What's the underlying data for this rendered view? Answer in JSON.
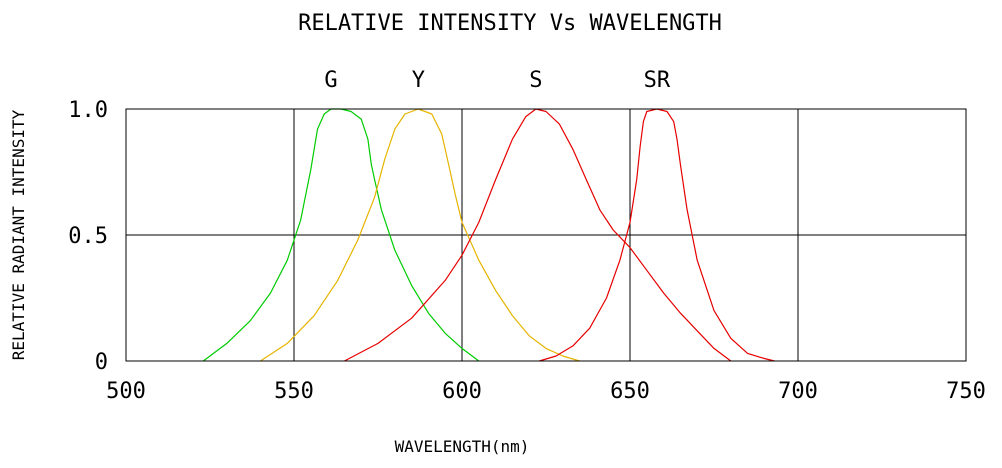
{
  "chart_data": {
    "type": "line",
    "title": "RELATIVE INTENSITY Vs WAVELENGTH",
    "xlabel": "WAVELENGTH(nm)",
    "ylabel": "RELATIVE RADIANT INTENSITY",
    "xlim": [
      500,
      750
    ],
    "ylim": [
      0,
      1.0
    ],
    "x_ticks": [
      500,
      550,
      600,
      650,
      700,
      750
    ],
    "x_tick_labels": [
      "500",
      "550",
      "600",
      "650",
      "700",
      "750"
    ],
    "y_ticks": [
      0,
      0.5,
      1.0
    ],
    "y_tick_labels": [
      "0",
      "0.5",
      "1.0"
    ],
    "grid": true,
    "series": [
      {
        "name": "G",
        "color": "#00cc00",
        "x": [
          523,
          530,
          537,
          543,
          548,
          552,
          555,
          557,
          559,
          561,
          564,
          567,
          570,
          572,
          573,
          574,
          576,
          580,
          585,
          590,
          595,
          600,
          605
        ],
        "y": [
          0.0,
          0.07,
          0.16,
          0.27,
          0.4,
          0.56,
          0.76,
          0.92,
          0.98,
          1.0,
          1.0,
          0.99,
          0.96,
          0.88,
          0.78,
          0.72,
          0.6,
          0.44,
          0.3,
          0.19,
          0.11,
          0.05,
          0.0
        ]
      },
      {
        "name": "Y",
        "color": "#e6b400",
        "x": [
          540,
          548,
          556,
          563,
          569,
          574,
          577,
          580,
          583,
          587,
          591,
          594,
          596,
          598,
          600,
          605,
          610,
          615,
          620,
          625,
          630,
          635
        ],
        "y": [
          0.0,
          0.07,
          0.18,
          0.32,
          0.48,
          0.65,
          0.8,
          0.92,
          0.98,
          1.0,
          0.98,
          0.9,
          0.78,
          0.66,
          0.55,
          0.4,
          0.28,
          0.18,
          0.1,
          0.05,
          0.02,
          0.0
        ]
      },
      {
        "name": "S",
        "color": "#e60000",
        "x": [
          565,
          575,
          585,
          595,
          600,
          605,
          610,
          615,
          619,
          622,
          625,
          629,
          633,
          637,
          641,
          645,
          650,
          655,
          660,
          665,
          670,
          675,
          680
        ],
        "y": [
          0.0,
          0.07,
          0.17,
          0.32,
          0.42,
          0.55,
          0.72,
          0.88,
          0.97,
          1.0,
          0.99,
          0.94,
          0.84,
          0.72,
          0.6,
          0.52,
          0.45,
          0.36,
          0.27,
          0.19,
          0.12,
          0.05,
          0.0
        ]
      },
      {
        "name": "SR",
        "color": "#e60000",
        "x": [
          623,
          628,
          633,
          638,
          643,
          647,
          650,
          652,
          653,
          654,
          655,
          658,
          661,
          663,
          664,
          665,
          667,
          670,
          675,
          680,
          685,
          690,
          693
        ],
        "y": [
          0.0,
          0.02,
          0.06,
          0.13,
          0.25,
          0.4,
          0.55,
          0.72,
          0.85,
          0.95,
          0.99,
          1.0,
          0.99,
          0.95,
          0.88,
          0.78,
          0.6,
          0.4,
          0.2,
          0.09,
          0.03,
          0.01,
          0.0
        ]
      }
    ]
  }
}
